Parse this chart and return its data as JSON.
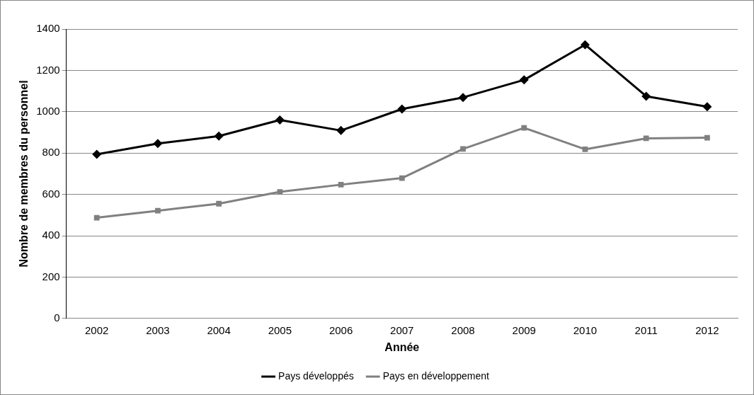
{
  "chart_data": {
    "type": "line",
    "xlabel": "Année",
    "ylabel": "Nombre de membres du personnel",
    "categories": [
      "2002",
      "2003",
      "2004",
      "2005",
      "2006",
      "2007",
      "2008",
      "2009",
      "2010",
      "2011",
      "2012"
    ],
    "series": [
      {
        "name": "Pays développés",
        "color": "#000000",
        "marker": "diamond",
        "values": [
          794,
          846,
          882,
          960,
          909,
          1013,
          1069,
          1154,
          1324,
          1075,
          1024
        ]
      },
      {
        "name": "Pays en développement",
        "color": "#808080",
        "marker": "square",
        "values": [
          487,
          521,
          555,
          612,
          647,
          679,
          820,
          922,
          818,
          871,
          874
        ]
      }
    ],
    "ylim": [
      0,
      1400
    ],
    "yticks": [
      0,
      200,
      400,
      600,
      800,
      1000,
      1200,
      1400
    ],
    "grid": "y",
    "legend": "bottom",
    "line_style": "solid"
  }
}
